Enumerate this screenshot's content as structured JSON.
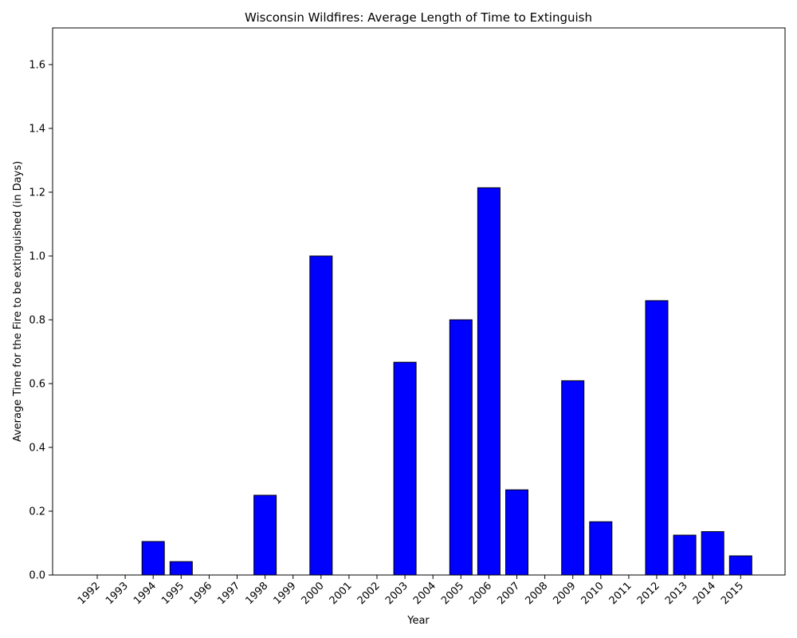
{
  "chart_data": {
    "type": "bar",
    "title": "Wisconsin Wildfires: Average Length of Time to Extinguish",
    "xlabel": "Year",
    "ylabel": "Average Time for the Fire to be extinguished (in Days)",
    "categories": [
      "1992",
      "1993",
      "1994",
      "1995",
      "1996",
      "1997",
      "1998",
      "1999",
      "2000",
      "2001",
      "2002",
      "2003",
      "2004",
      "2005",
      "2006",
      "2007",
      "2008",
      "2009",
      "2010",
      "2011",
      "2012",
      "2013",
      "2014",
      "2015"
    ],
    "values": [
      0,
      0,
      0.105,
      0.042,
      0,
      0,
      0.25,
      0,
      1.0,
      0,
      0,
      0.667,
      0,
      0.8,
      1.214,
      0.267,
      0,
      0.609,
      0.167,
      0,
      0.86,
      0.125,
      0.136,
      0.06
    ],
    "ylim": [
      0,
      1.715
    ],
    "yticks": [
      "0.0",
      "0.2",
      "0.4",
      "0.6",
      "0.8",
      "1.0",
      "1.2",
      "1.4",
      "1.6"
    ],
    "bar_color": "#0000ff",
    "edge_color": "#000000",
    "grid": false
  }
}
